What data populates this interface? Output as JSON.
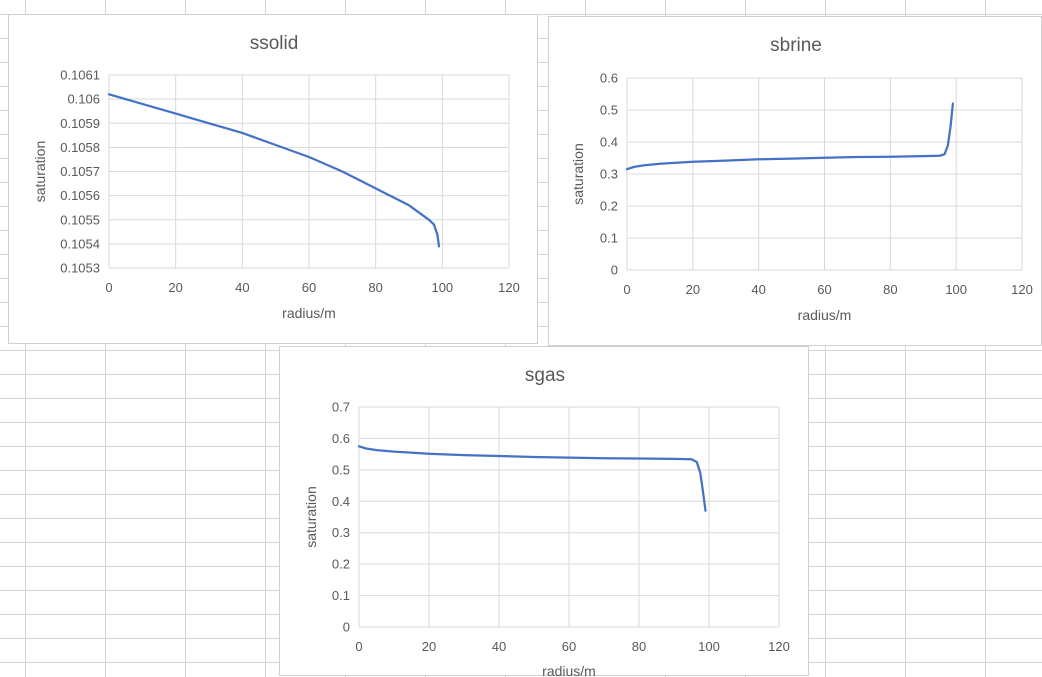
{
  "page": {
    "background": "#ffffff",
    "gridline_color": "#d4d4d4"
  },
  "chart_data": [
    {
      "id": "ssolid",
      "type": "line",
      "title": "ssolid",
      "xlabel": "radius/m",
      "ylabel": "saturation",
      "xlim": [
        0,
        120
      ],
      "ylim": [
        0.1053,
        0.1061
      ],
      "x_ticks": [
        "0",
        "20",
        "40",
        "60",
        "80",
        "100",
        "120"
      ],
      "y_ticks": [
        "0.1053",
        "0.1054",
        "0.1055",
        "0.1056",
        "0.1057",
        "0.1058",
        "0.1059",
        "0.106",
        "0.1061"
      ],
      "grid": true,
      "legend": "none",
      "series_color": "#4472c4",
      "series": [
        {
          "x": [
            0,
            10,
            20,
            30,
            40,
            50,
            60,
            70,
            80,
            90,
            96,
            97.5,
            98.5,
            99
          ],
          "y": [
            0.10602,
            0.10598,
            0.10594,
            0.1059,
            0.10586,
            0.10581,
            0.10576,
            0.1057,
            0.10563,
            0.10556,
            0.1055,
            0.10548,
            0.10544,
            0.10539
          ]
        }
      ]
    },
    {
      "id": "sbrine",
      "type": "line",
      "title": "sbrine",
      "xlabel": "radius/m",
      "ylabel": "saturation",
      "xlim": [
        0,
        120
      ],
      "ylim": [
        0,
        0.6
      ],
      "x_ticks": [
        "0",
        "20",
        "40",
        "60",
        "80",
        "100",
        "120"
      ],
      "y_ticks": [
        "0",
        "0.1",
        "0.2",
        "0.3",
        "0.4",
        "0.5",
        "0.6"
      ],
      "grid": true,
      "legend": "none",
      "series_color": "#4472c4",
      "series": [
        {
          "x": [
            0,
            2,
            5,
            10,
            20,
            30,
            40,
            50,
            60,
            70,
            80,
            90,
            95,
            96.5,
            97.5,
            98.3,
            99
          ],
          "y": [
            0.315,
            0.322,
            0.327,
            0.332,
            0.338,
            0.342,
            0.346,
            0.348,
            0.351,
            0.353,
            0.354,
            0.356,
            0.357,
            0.362,
            0.39,
            0.45,
            0.52
          ]
        }
      ]
    },
    {
      "id": "sgas",
      "type": "line",
      "title": "sgas",
      "xlabel": "radius/m",
      "ylabel": "saturation",
      "xlim": [
        0,
        120
      ],
      "ylim": [
        0,
        0.7
      ],
      "x_ticks": [
        "0",
        "20",
        "40",
        "60",
        "80",
        "100",
        "120"
      ],
      "y_ticks": [
        "0",
        "0.1",
        "0.2",
        "0.3",
        "0.4",
        "0.5",
        "0.6",
        "0.7"
      ],
      "grid": true,
      "legend": "none",
      "series_color": "#4472c4",
      "series": [
        {
          "x": [
            0,
            2,
            5,
            10,
            20,
            30,
            40,
            50,
            60,
            70,
            80,
            90,
            95,
            96.5,
            97.5,
            98.3,
            99
          ],
          "y": [
            0.575,
            0.568,
            0.563,
            0.558,
            0.551,
            0.547,
            0.544,
            0.541,
            0.539,
            0.537,
            0.536,
            0.535,
            0.534,
            0.525,
            0.49,
            0.43,
            0.37
          ]
        }
      ]
    }
  ]
}
